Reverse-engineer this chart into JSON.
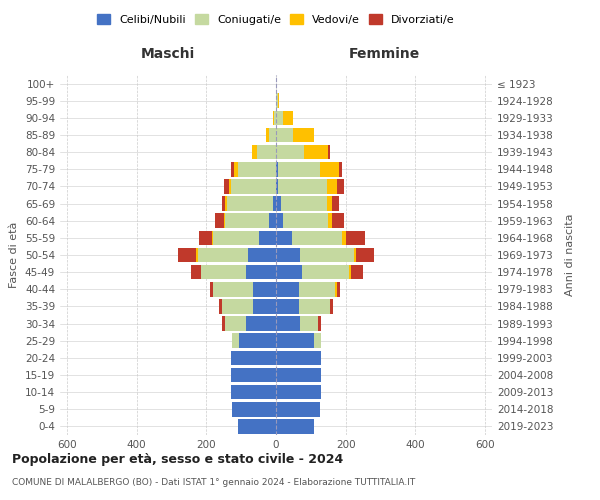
{
  "age_groups": [
    "0-4",
    "5-9",
    "10-14",
    "15-19",
    "20-24",
    "25-29",
    "30-34",
    "35-39",
    "40-44",
    "45-49",
    "50-54",
    "55-59",
    "60-64",
    "65-69",
    "70-74",
    "75-79",
    "80-84",
    "85-89",
    "90-94",
    "95-99",
    "100+"
  ],
  "birth_years": [
    "2019-2023",
    "2014-2018",
    "2009-2013",
    "2004-2008",
    "1999-2003",
    "1994-1998",
    "1989-1993",
    "1984-1988",
    "1979-1983",
    "1974-1978",
    "1969-1973",
    "1964-1968",
    "1959-1963",
    "1954-1958",
    "1949-1953",
    "1944-1948",
    "1939-1943",
    "1934-1938",
    "1929-1933",
    "1924-1928",
    "≤ 1923"
  ],
  "males": {
    "celibi": [
      110,
      125,
      130,
      130,
      130,
      105,
      85,
      65,
      65,
      85,
      80,
      50,
      20,
      10,
      0,
      0,
      0,
      0,
      0,
      0,
      0
    ],
    "coniugati": [
      0,
      0,
      0,
      0,
      0,
      20,
      60,
      90,
      115,
      130,
      145,
      130,
      125,
      130,
      130,
      110,
      55,
      20,
      5,
      0,
      0
    ],
    "vedovi": [
      0,
      0,
      0,
      0,
      0,
      0,
      0,
      0,
      0,
      0,
      5,
      5,
      5,
      5,
      5,
      10,
      15,
      10,
      5,
      0,
      0
    ],
    "divorziati": [
      0,
      0,
      0,
      0,
      0,
      0,
      10,
      10,
      10,
      30,
      50,
      35,
      25,
      10,
      15,
      10,
      0,
      0,
      0,
      0,
      0
    ]
  },
  "females": {
    "nubili": [
      110,
      125,
      130,
      130,
      130,
      110,
      70,
      65,
      65,
      75,
      70,
      45,
      20,
      15,
      5,
      5,
      0,
      0,
      0,
      0,
      0
    ],
    "coniugate": [
      0,
      0,
      0,
      0,
      0,
      20,
      50,
      90,
      105,
      135,
      155,
      145,
      130,
      130,
      140,
      120,
      80,
      50,
      20,
      5,
      0
    ],
    "vedove": [
      0,
      0,
      0,
      0,
      0,
      0,
      0,
      0,
      5,
      5,
      5,
      10,
      10,
      15,
      30,
      55,
      70,
      60,
      30,
      5,
      0
    ],
    "divorziate": [
      0,
      0,
      0,
      0,
      0,
      0,
      10,
      10,
      10,
      35,
      50,
      55,
      35,
      20,
      20,
      10,
      5,
      0,
      0,
      0,
      0
    ]
  },
  "colors": {
    "celibi": "#4472c4",
    "coniugati": "#c5d9a0",
    "vedovi": "#ffc000",
    "divorziati": "#c0392b"
  },
  "xlim": [
    -620,
    620
  ],
  "xticks": [
    -600,
    -400,
    -200,
    0,
    200,
    400,
    600
  ],
  "xticklabels": [
    "600",
    "400",
    "200",
    "0",
    "200",
    "400",
    "600"
  ],
  "title": "Popolazione per età, sesso e stato civile - 2024",
  "subtitle": "COMUNE DI MALALBERGO (BO) - Dati ISTAT 1° gennaio 2024 - Elaborazione TUTTITALIA.IT",
  "ylabel_left": "Fasce di età",
  "ylabel_right": "Anni di nascita",
  "maschi_label": "Maschi",
  "femmine_label": "Femmine",
  "bar_height": 0.85,
  "bg_color": "#ffffff",
  "grid_color": "#cccccc",
  "legend_labels": [
    "Celibi/Nubili",
    "Coniugati/e",
    "Vedovi/e",
    "Divorziati/e"
  ]
}
